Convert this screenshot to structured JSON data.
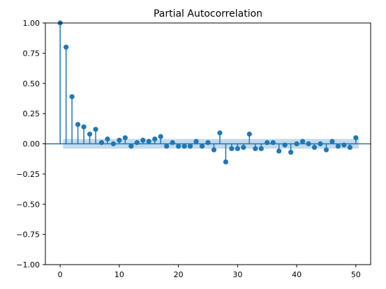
{
  "chart_data": {
    "type": "scatter",
    "title": "Partial Autocorrelation",
    "xlabel": "",
    "ylabel": "",
    "xlim": [
      -2.5,
      52.5
    ],
    "ylim": [
      -1.0,
      1.0
    ],
    "x_ticks": [
      0,
      10,
      20,
      30,
      40,
      50
    ],
    "x_tick_labels": [
      "0",
      "10",
      "20",
      "30",
      "40",
      "50"
    ],
    "y_ticks": [
      1.0,
      0.75,
      0.5,
      0.25,
      0.0,
      -0.25,
      -0.5,
      -0.75,
      -1.0
    ],
    "y_tick_labels": [
      "1.00",
      "0.75",
      "0.50",
      "0.25",
      "0.00",
      "−0.25",
      "−0.50",
      "−0.75",
      "−1.00"
    ],
    "grid": false,
    "confidence_band": {
      "lower": -0.04,
      "upper": 0.04,
      "x_start": 0.5,
      "x_end": 50.5
    },
    "series": [
      {
        "x": [
          0,
          1,
          2,
          3,
          4,
          5,
          6,
          7,
          8,
          9,
          10,
          11,
          12,
          13,
          14,
          15,
          16,
          17,
          18,
          19,
          20,
          21,
          22,
          23,
          24,
          25,
          26,
          27,
          28,
          29,
          30,
          31,
          32,
          33,
          34,
          35,
          36,
          37,
          38,
          39,
          40,
          41,
          42,
          43,
          44,
          45,
          46,
          47,
          48,
          49,
          50
        ],
        "values": [
          1.0,
          0.8,
          0.39,
          0.16,
          0.14,
          0.08,
          0.12,
          0.01,
          0.04,
          0.0,
          0.03,
          0.05,
          -0.02,
          0.01,
          0.03,
          0.02,
          0.04,
          0.06,
          -0.02,
          0.01,
          -0.02,
          -0.02,
          -0.02,
          0.02,
          -0.02,
          0.01,
          -0.05,
          0.09,
          -0.15,
          -0.04,
          -0.04,
          -0.03,
          0.08,
          -0.04,
          -0.04,
          0.01,
          0.01,
          -0.06,
          -0.01,
          -0.07,
          0.0,
          0.02,
          0.0,
          -0.03,
          0.0,
          -0.05,
          0.02,
          -0.02,
          -0.01,
          -0.03,
          0.05
        ]
      }
    ]
  },
  "colors": {
    "stem": "#1f77b4",
    "marker": "#1f77b4",
    "band": "#bcd5ea",
    "zero_line": "#1f77b4",
    "axis": "#000000"
  }
}
